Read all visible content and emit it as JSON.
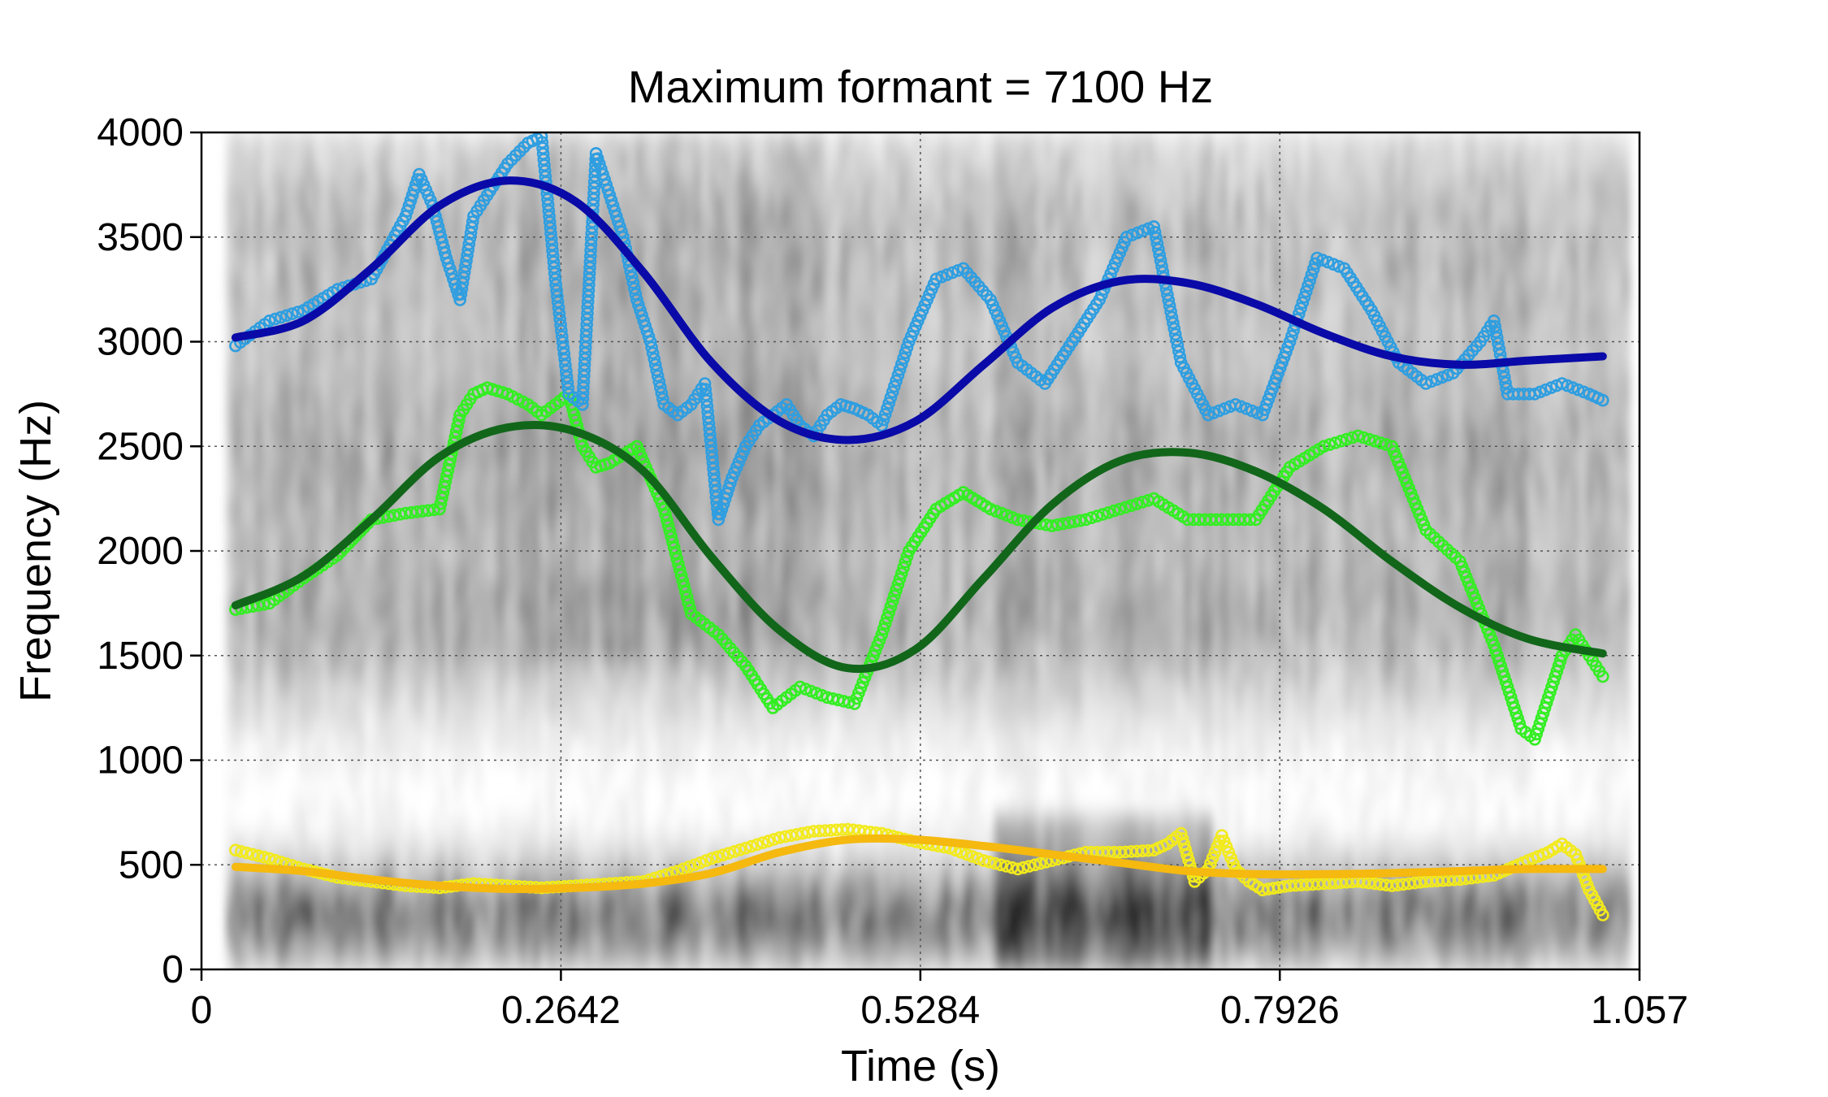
{
  "chart_data": {
    "type": "scatter",
    "title": "Maximum formant = 7100 Hz",
    "xlabel": "Time (s)",
    "ylabel": "Frequency (Hz)",
    "xlim": [
      0,
      1.057
    ],
    "ylim": [
      0,
      4000
    ],
    "x_ticks": [
      0,
      0.2642,
      0.5284,
      0.7926,
      1.057
    ],
    "x_tick_labels": [
      "0",
      "0.2642",
      "0.5284",
      "0.7926",
      "1.057"
    ],
    "y_ticks": [
      0,
      500,
      1000,
      1500,
      2000,
      2500,
      3000,
      3500,
      4000
    ],
    "y_tick_labels": [
      "0",
      "500",
      "1000",
      "1500",
      "2000",
      "2500",
      "3000",
      "3500",
      "4000"
    ],
    "grid": true,
    "background": "spectrogram",
    "colors": {
      "F1_points": "#f2ea1c",
      "F1_smooth": "#f5b90f",
      "F2_points": "#33ee22",
      "F2_smooth": "#11661a",
      "F3_points": "#2f9ee0",
      "F3_smooth": "#0a0aa8"
    },
    "series": [
      {
        "id": "F1_points",
        "kind": "points",
        "x": [
          0.025,
          0.05,
          0.075,
          0.1,
          0.125,
          0.15,
          0.175,
          0.2,
          0.225,
          0.25,
          0.275,
          0.3,
          0.325,
          0.35,
          0.375,
          0.4,
          0.425,
          0.45,
          0.475,
          0.5,
          0.525,
          0.55,
          0.575,
          0.6,
          0.625,
          0.65,
          0.675,
          0.7,
          0.71,
          0.72,
          0.73,
          0.74,
          0.75,
          0.76,
          0.77,
          0.78,
          0.8,
          0.825,
          0.85,
          0.875,
          0.9,
          0.925,
          0.95,
          0.975,
          0.99,
          1.0,
          1.01,
          1.02,
          1.03
        ],
        "y": [
          570,
          530,
          480,
          440,
          420,
          400,
          390,
          410,
          400,
          390,
          400,
          410,
          420,
          470,
          530,
          580,
          630,
          660,
          670,
          650,
          610,
          580,
          520,
          480,
          520,
          560,
          560,
          570,
          600,
          650,
          420,
          480,
          640,
          480,
          420,
          380,
          400,
          410,
          420,
          400,
          420,
          430,
          450,
          520,
          560,
          600,
          550,
          380,
          260
        ]
      },
      {
        "id": "F1_smooth",
        "kind": "line",
        "x": [
          0.025,
          0.075,
          0.125,
          0.175,
          0.225,
          0.275,
          0.325,
          0.375,
          0.425,
          0.475,
          0.525,
          0.575,
          0.625,
          0.675,
          0.725,
          0.775,
          0.825,
          0.875,
          0.925,
          0.975,
          1.03
        ],
        "y": [
          490,
          470,
          430,
          400,
          385,
          390,
          410,
          460,
          560,
          620,
          620,
          590,
          550,
          510,
          470,
          455,
          455,
          460,
          470,
          480,
          480
        ]
      },
      {
        "id": "F2_points",
        "kind": "points",
        "x": [
          0.025,
          0.05,
          0.075,
          0.1,
          0.125,
          0.15,
          0.175,
          0.19,
          0.2,
          0.21,
          0.225,
          0.24,
          0.25,
          0.26,
          0.27,
          0.28,
          0.29,
          0.3,
          0.32,
          0.34,
          0.36,
          0.38,
          0.4,
          0.42,
          0.44,
          0.46,
          0.48,
          0.5,
          0.52,
          0.54,
          0.56,
          0.58,
          0.6,
          0.625,
          0.65,
          0.675,
          0.7,
          0.725,
          0.75,
          0.775,
          0.8,
          0.825,
          0.85,
          0.875,
          0.9,
          0.925,
          0.95,
          0.96,
          0.97,
          0.98,
          0.99,
          1.0,
          1.01,
          1.02,
          1.03
        ],
        "y": [
          1720,
          1750,
          1870,
          1980,
          2150,
          2180,
          2200,
          2650,
          2750,
          2780,
          2750,
          2700,
          2650,
          2700,
          2750,
          2500,
          2400,
          2420,
          2500,
          2200,
          1700,
          1600,
          1450,
          1250,
          1350,
          1300,
          1270,
          1600,
          2000,
          2200,
          2280,
          2200,
          2150,
          2120,
          2150,
          2200,
          2250,
          2150,
          2150,
          2150,
          2400,
          2500,
          2550,
          2500,
          2100,
          1950,
          1550,
          1350,
          1150,
          1100,
          1300,
          1500,
          1600,
          1500,
          1400
        ]
      },
      {
        "id": "F2_smooth",
        "kind": "line",
        "x": [
          0.025,
          0.075,
          0.125,
          0.175,
          0.225,
          0.275,
          0.325,
          0.375,
          0.425,
          0.475,
          0.525,
          0.575,
          0.625,
          0.675,
          0.725,
          0.775,
          0.825,
          0.875,
          0.925,
          0.975,
          1.03
        ],
        "y": [
          1740,
          1880,
          2150,
          2450,
          2590,
          2570,
          2380,
          1970,
          1620,
          1440,
          1530,
          1870,
          2220,
          2430,
          2470,
          2380,
          2200,
          1950,
          1730,
          1580,
          1510
        ]
      },
      {
        "id": "F3_points",
        "kind": "points",
        "x": [
          0.025,
          0.05,
          0.075,
          0.1,
          0.125,
          0.15,
          0.16,
          0.17,
          0.18,
          0.19,
          0.2,
          0.21,
          0.225,
          0.24,
          0.25,
          0.26,
          0.27,
          0.28,
          0.29,
          0.3,
          0.31,
          0.32,
          0.33,
          0.34,
          0.35,
          0.36,
          0.37,
          0.38,
          0.39,
          0.4,
          0.41,
          0.42,
          0.43,
          0.44,
          0.45,
          0.46,
          0.47,
          0.48,
          0.49,
          0.5,
          0.52,
          0.54,
          0.56,
          0.58,
          0.6,
          0.62,
          0.64,
          0.66,
          0.68,
          0.7,
          0.72,
          0.74,
          0.76,
          0.78,
          0.8,
          0.82,
          0.84,
          0.86,
          0.88,
          0.9,
          0.92,
          0.94,
          0.95,
          0.96,
          0.98,
          1.0,
          1.02,
          1.03
        ],
        "y": [
          2980,
          3100,
          3150,
          3250,
          3300,
          3600,
          3800,
          3650,
          3400,
          3200,
          3600,
          3700,
          3850,
          3950,
          3980,
          3300,
          2750,
          2700,
          3900,
          3700,
          3500,
          3200,
          3000,
          2700,
          2650,
          2700,
          2800,
          2150,
          2350,
          2500,
          2600,
          2650,
          2700,
          2600,
          2550,
          2650,
          2700,
          2680,
          2650,
          2600,
          3000,
          3300,
          3350,
          3200,
          2900,
          2800,
          3000,
          3200,
          3500,
          3550,
          2900,
          2650,
          2700,
          2650,
          3000,
          3400,
          3350,
          3150,
          2900,
          2800,
          2850,
          3000,
          3100,
          2750,
          2750,
          2800,
          2750,
          2720
        ]
      },
      {
        "id": "F3_smooth",
        "kind": "line",
        "x": [
          0.025,
          0.075,
          0.125,
          0.175,
          0.225,
          0.275,
          0.325,
          0.375,
          0.425,
          0.475,
          0.525,
          0.575,
          0.625,
          0.675,
          0.725,
          0.775,
          0.825,
          0.875,
          0.925,
          0.975,
          1.03
        ],
        "y": [
          3020,
          3100,
          3350,
          3650,
          3770,
          3670,
          3330,
          2900,
          2620,
          2530,
          2620,
          2890,
          3160,
          3290,
          3280,
          3180,
          3040,
          2930,
          2890,
          2910,
          2930
        ]
      }
    ]
  }
}
